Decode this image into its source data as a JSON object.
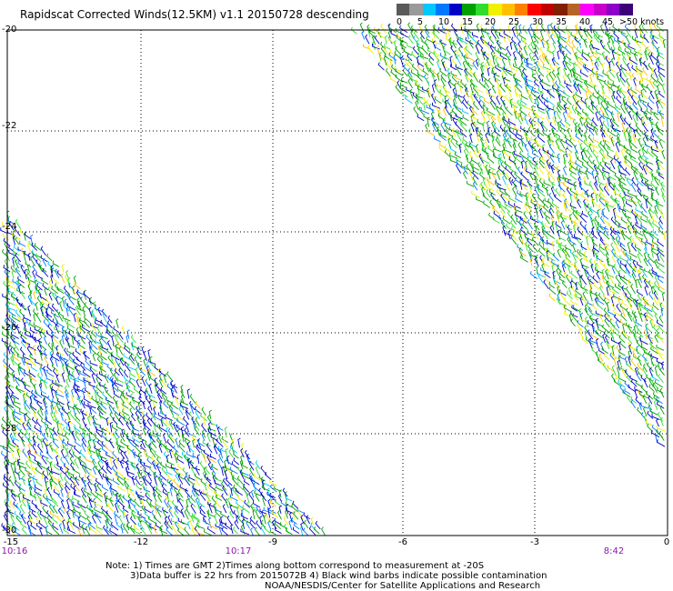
{
  "header": {
    "title": "Rapidscat Corrected Winds(12.5KM) v1.1 20150728 descending"
  },
  "legend": {
    "colors": [
      "#5a5a5a",
      "#9a9a9a",
      "#00c8ff",
      "#0078ff",
      "#0000c8",
      "#00a000",
      "#30dc30",
      "#f0f000",
      "#ffc000",
      "#ff8000",
      "#ff0000",
      "#c00000",
      "#802000",
      "#b46428",
      "#ff00ff",
      "#c800c8",
      "#8c00c8",
      "#3c0078"
    ],
    "labels": [
      "0",
      "5",
      "10",
      "15",
      "20",
      "25",
      "30",
      "35",
      "40",
      "45",
      ">50 knots"
    ]
  },
  "axes": {
    "y_labels": [
      "-20",
      "-22",
      "-24",
      "-26",
      "-28",
      "-30"
    ],
    "x_labels": [
      "-15",
      "-12",
      "-9",
      "-6",
      "-3",
      "0"
    ],
    "time_labels": [
      "10:16",
      "10:17",
      "8:42"
    ]
  },
  "notes": {
    "line1": "Note: 1) Times are GMT 2)Times along bottom correspond to measurement at -20S",
    "line2": "3)Data buffer is 22 hrs from 2015072B 4) Black wind barbs indicate possible contamination",
    "line3": "NOAA/NESDIS/Center for Satellite Applications and Research"
  }
}
